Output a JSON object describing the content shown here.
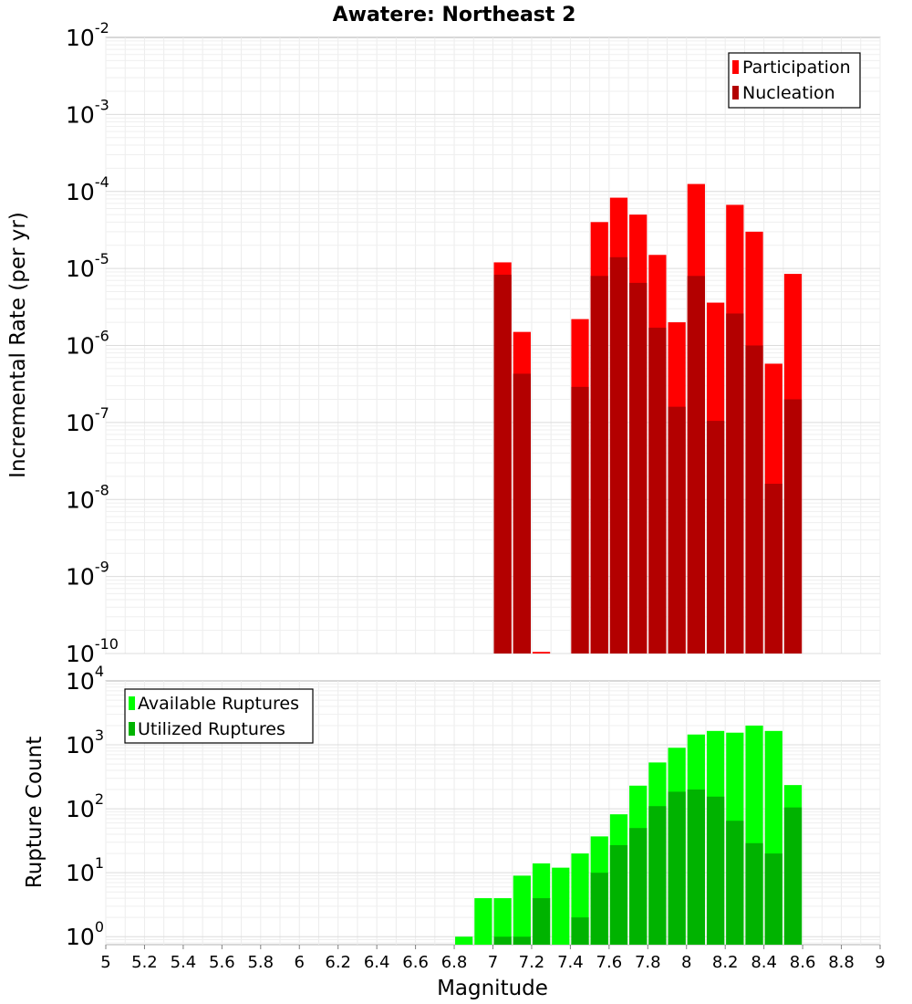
{
  "chart_data": [
    {
      "type": "bar",
      "title": "Awatere: Northeast 2",
      "xlabel": "Magnitude",
      "ylabel": "Incremental Rate (per yr)",
      "y_scale": "log",
      "ylim": [
        1e-10,
        0.01
      ],
      "xlim": [
        5,
        9
      ],
      "grid": true,
      "legend_position": "top-right",
      "bar_width": 0.1,
      "y_tick_exponents": [
        "-10",
        "-9",
        "-8",
        "-7",
        "-6",
        "-5",
        "-4",
        "-3",
        "-2"
      ],
      "y_tick_base": "10",
      "x": [
        7.05,
        7.15,
        7.25,
        7.45,
        7.55,
        7.65,
        7.75,
        7.85,
        7.95,
        8.05,
        8.15,
        8.25,
        8.35,
        8.45,
        8.55
      ],
      "series": [
        {
          "name": "Participation",
          "color": "#ff0000",
          "values": [
            1.2e-05,
            1.5e-06,
            1.05e-10,
            2.2e-06,
            4e-05,
            8.3e-05,
            5e-05,
            1.5e-05,
            2e-06,
            0.000125,
            3.6e-06,
            6.7e-05,
            3e-05,
            5.8e-07,
            8.5e-06
          ]
        },
        {
          "name": "Nucleation",
          "color": "#b30000",
          "values": [
            8.3e-06,
            4.3e-07,
            1e-10,
            2.9e-07,
            8e-06,
            1.4e-05,
            6.5e-06,
            1.7e-06,
            1.6e-07,
            8e-06,
            1.05e-07,
            2.6e-06,
            1e-06,
            1.6e-08,
            2e-07
          ]
        }
      ]
    },
    {
      "type": "bar",
      "xlabel": "Magnitude",
      "ylabel": "Rupture Count",
      "y_scale": "log",
      "ylim": [
        0.75,
        10000.0
      ],
      "xlim": [
        5,
        9
      ],
      "grid": true,
      "legend_position": "top-left",
      "bar_width": 0.1,
      "y_tick_exponents": [
        "0",
        "1",
        "2",
        "3",
        "4"
      ],
      "y_tick_base": "10",
      "x_ticks": [
        "5",
        "5.2",
        "5.4",
        "5.6",
        "5.8",
        "6",
        "6.2",
        "6.4",
        "6.6",
        "6.8",
        "7",
        "7.2",
        "7.4",
        "7.6",
        "7.8",
        "8",
        "8.2",
        "8.4",
        "8.6",
        "8.8",
        "9"
      ],
      "x": [
        6.85,
        6.95,
        7.05,
        7.15,
        7.25,
        7.35,
        7.45,
        7.55,
        7.65,
        7.75,
        7.85,
        7.95,
        8.05,
        8.15,
        8.25,
        8.35,
        8.45,
        8.55
      ],
      "series": [
        {
          "name": "Available Ruptures",
          "color": "#00ff00",
          "values": [
            1,
            4,
            4,
            9,
            14,
            12,
            20,
            37,
            82,
            230,
            530,
            900,
            1450,
            1650,
            1550,
            2000,
            1650,
            235
          ]
        },
        {
          "name": "Utilized Ruptures",
          "color": "#00b300",
          "values": [
            0,
            0,
            1,
            1,
            4,
            0,
            2,
            10,
            27,
            50,
            110,
            185,
            200,
            155,
            65,
            29,
            20,
            105
          ]
        }
      ]
    }
  ]
}
